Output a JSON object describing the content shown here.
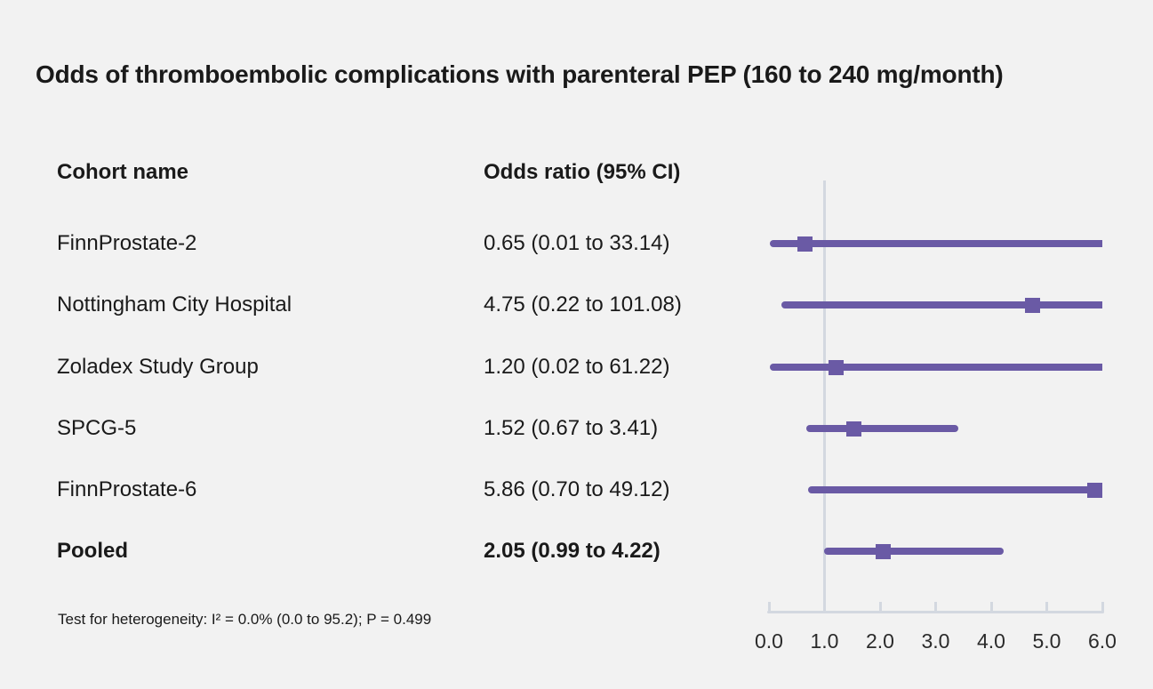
{
  "title": "Odds of thromboembolic complications with parenteral PEP (160 to 240 mg/month)",
  "columns": {
    "cohort": "Cohort name",
    "odds": "Odds ratio (95% CI)"
  },
  "footnote": "Test for heterogeneity: I² = 0.0% (0.0 to 95.2); P = 0.499",
  "colors": {
    "background": "#f2f2f2",
    "marker_purple": "#6a5aa5",
    "axis_gray": "#d3d8e0",
    "text_dark": "#1a1a1a",
    "tick_label": "#2b2b2b"
  },
  "chart_data": {
    "type": "scatter",
    "variant": "forest_plot",
    "title": "Odds of thromboembolic complications with parenteral PEP (160 to 240 mg/month)",
    "xlabel": "",
    "ylabel": "",
    "x_axis": {
      "min": 0.0,
      "max": 6.0,
      "tick_labels": [
        "0.0",
        "1.0",
        "2.0",
        "3.0",
        "4.0",
        "5.0",
        "6.0"
      ],
      "tick_values": [
        0,
        1,
        2,
        3,
        4,
        5,
        6
      ],
      "reference_line": 1.0,
      "grid": false
    },
    "rows": [
      {
        "label": "FinnProstate-2",
        "display": "0.65 (0.01 to 33.14)",
        "estimate": 0.65,
        "ci_low": 0.01,
        "ci_high": 33.14,
        "bold": false
      },
      {
        "label": "Nottingham City Hospital",
        "display": "4.75 (0.22 to 101.08)",
        "estimate": 4.75,
        "ci_low": 0.22,
        "ci_high": 101.08,
        "bold": false
      },
      {
        "label": "Zoladex Study Group",
        "display": "1.20 (0.02 to 61.22)",
        "estimate": 1.2,
        "ci_low": 0.02,
        "ci_high": 61.22,
        "bold": false
      },
      {
        "label": "SPCG-5",
        "display": "1.52 (0.67 to 3.41)",
        "estimate": 1.52,
        "ci_low": 0.67,
        "ci_high": 3.41,
        "bold": false
      },
      {
        "label": "FinnProstate-6",
        "display": "5.86 (0.70 to 49.12)",
        "estimate": 5.86,
        "ci_low": 0.7,
        "ci_high": 49.12,
        "bold": false
      },
      {
        "label": "Pooled",
        "display": "2.05 (0.99 to 4.22)",
        "estimate": 2.05,
        "ci_low": 0.99,
        "ci_high": 4.22,
        "bold": true
      }
    ]
  }
}
